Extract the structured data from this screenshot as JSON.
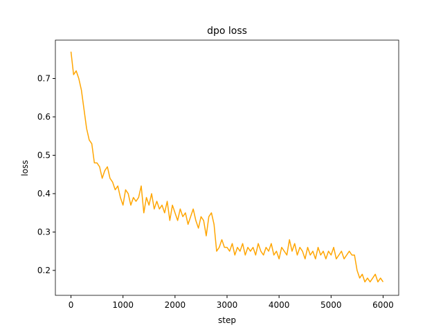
{
  "chart_data": {
    "type": "line",
    "title": "dpo loss",
    "x_label": "step",
    "y_label": "loss",
    "x": [
      0,
      50,
      100,
      150,
      200,
      250,
      300,
      350,
      400,
      450,
      500,
      550,
      600,
      650,
      700,
      750,
      800,
      850,
      900,
      950,
      1000,
      1050,
      1100,
      1150,
      1200,
      1250,
      1300,
      1350,
      1400,
      1450,
      1500,
      1550,
      1600,
      1650,
      1700,
      1750,
      1800,
      1850,
      1900,
      1950,
      2000,
      2050,
      2100,
      2150,
      2200,
      2250,
      2300,
      2350,
      2400,
      2450,
      2500,
      2550,
      2600,
      2650,
      2700,
      2750,
      2800,
      2850,
      2900,
      2950,
      3000,
      3050,
      3100,
      3150,
      3200,
      3250,
      3300,
      3350,
      3400,
      3450,
      3500,
      3550,
      3600,
      3650,
      3700,
      3750,
      3800,
      3850,
      3900,
      3950,
      4000,
      4050,
      4100,
      4150,
      4200,
      4250,
      4300,
      4350,
      4400,
      4450,
      4500,
      4550,
      4600,
      4650,
      4700,
      4750,
      4800,
      4850,
      4900,
      4950,
      5000,
      5050,
      5100,
      5150,
      5200,
      5250,
      5300,
      5350,
      5400,
      5450,
      5500,
      5550,
      5600,
      5650,
      5700,
      5750,
      5800,
      5850,
      5900,
      5950,
      6000
    ],
    "series": [
      {
        "name": "loss",
        "color": "#ffa500",
        "values": [
          0.77,
          0.71,
          0.72,
          0.7,
          0.67,
          0.62,
          0.57,
          0.54,
          0.53,
          0.48,
          0.48,
          0.47,
          0.44,
          0.46,
          0.47,
          0.44,
          0.43,
          0.41,
          0.42,
          0.39,
          0.37,
          0.41,
          0.4,
          0.37,
          0.39,
          0.38,
          0.39,
          0.42,
          0.35,
          0.39,
          0.37,
          0.4,
          0.36,
          0.38,
          0.36,
          0.37,
          0.35,
          0.38,
          0.33,
          0.37,
          0.35,
          0.33,
          0.36,
          0.34,
          0.35,
          0.32,
          0.34,
          0.36,
          0.33,
          0.31,
          0.34,
          0.33,
          0.29,
          0.34,
          0.35,
          0.32,
          0.25,
          0.26,
          0.28,
          0.26,
          0.26,
          0.25,
          0.27,
          0.24,
          0.26,
          0.25,
          0.27,
          0.24,
          0.26,
          0.25,
          0.26,
          0.24,
          0.27,
          0.25,
          0.24,
          0.26,
          0.25,
          0.27,
          0.24,
          0.25,
          0.23,
          0.26,
          0.25,
          0.24,
          0.28,
          0.25,
          0.27,
          0.24,
          0.26,
          0.25,
          0.23,
          0.26,
          0.24,
          0.25,
          0.23,
          0.26,
          0.24,
          0.25,
          0.23,
          0.25,
          0.24,
          0.26,
          0.23,
          0.24,
          0.25,
          0.23,
          0.24,
          0.25,
          0.24,
          0.24,
          0.2,
          0.18,
          0.19,
          0.17,
          0.18,
          0.17,
          0.18,
          0.19,
          0.17,
          0.18,
          0.17
        ]
      }
    ],
    "xlim": [
      -300,
      6300
    ],
    "xticks": [
      0,
      1000,
      2000,
      3000,
      4000,
      5000,
      6000
    ],
    "ylim": [
      0.135,
      0.8
    ],
    "yticks": [
      0.2,
      0.3,
      0.4,
      0.5,
      0.6,
      0.7
    ],
    "grid": false
  }
}
